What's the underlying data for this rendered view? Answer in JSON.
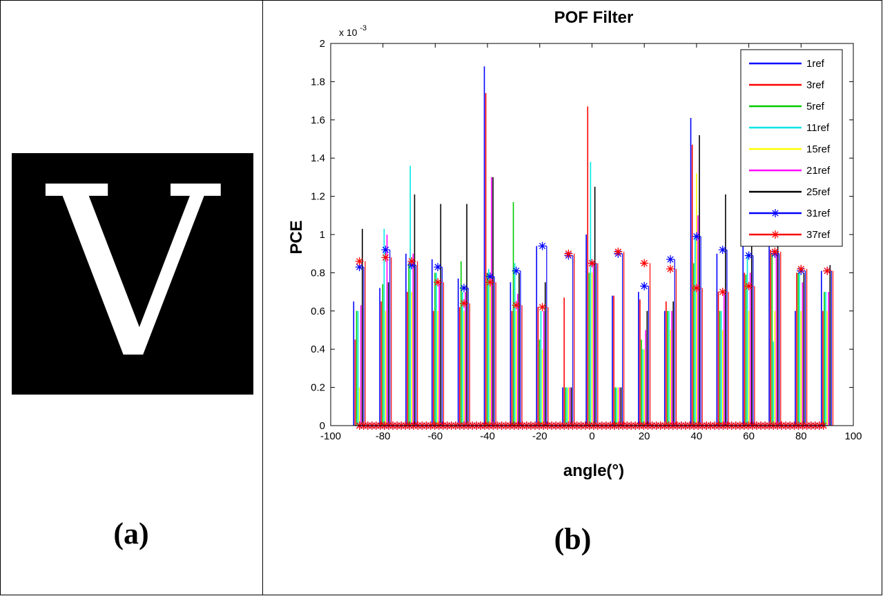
{
  "panel_a": {
    "glyph": "V",
    "caption": "(a)"
  },
  "panel_b": {
    "caption": "(b)"
  },
  "chart_data": {
    "type": "line",
    "title": "POF Filter",
    "xlabel": "angle(°)",
    "ylabel": "PCE",
    "exponent_label": "x 10",
    "exponent_power": "-3",
    "xlim": [
      -100,
      100
    ],
    "ylim": [
      0,
      2
    ],
    "x_ticks": [
      -100,
      -80,
      -60,
      -40,
      -20,
      0,
      20,
      40,
      60,
      80,
      100
    ],
    "x_tick_labels": [
      "-100",
      "-80",
      "-60",
      "-40",
      "-20",
      "0",
      "20",
      "40",
      "60",
      "80",
      "100"
    ],
    "y_ticks": [
      0,
      0.2,
      0.4,
      0.6,
      0.8,
      1,
      1.2,
      1.4,
      1.6,
      1.8,
      2
    ],
    "y_tick_labels": [
      "0",
      "0.2",
      "0.4",
      "0.6",
      "0.8",
      "1",
      "1.2",
      "1.4",
      "1.6",
      "1.8",
      "2"
    ],
    "x_angles": [
      -89,
      -79,
      -69,
      -59,
      -49,
      -39,
      -29,
      -19,
      -9,
      0,
      10,
      20,
      30,
      40,
      50,
      60,
      70,
      80,
      90
    ],
    "legend_position": "top-right",
    "series": [
      {
        "name": "1ref",
        "color": "#0000ff",
        "marker": "none",
        "values": [
          0.65,
          0.72,
          0.9,
          0.87,
          0.77,
          1.88,
          0.75,
          0.94,
          0.2,
          1.0,
          0.68,
          0.7,
          0.6,
          1.61,
          0.9,
          1.0,
          1.0,
          0.6,
          0.81
        ]
      },
      {
        "name": "3ref",
        "color": "#ff0000",
        "marker": "none",
        "values": [
          0.45,
          0.65,
          0.7,
          0.6,
          0.62,
          1.74,
          0.6,
          0.62,
          0.67,
          1.67,
          0.68,
          0.66,
          0.65,
          1.47,
          0.7,
          0.8,
          0.92,
          0.8,
          0.6
        ]
      },
      {
        "name": "5ref",
        "color": "#00cc00",
        "marker": "none",
        "values": [
          0.6,
          0.74,
          0.85,
          0.8,
          0.86,
          0.8,
          1.17,
          0.45,
          0.2,
          0.8,
          0.2,
          0.45,
          0.6,
          0.85,
          0.6,
          0.79,
          0.9,
          0.8,
          0.7
        ]
      },
      {
        "name": "11ref",
        "color": "#00e5e5",
        "marker": "none",
        "values": [
          0.6,
          1.03,
          1.36,
          0.8,
          0.7,
          0.82,
          0.85,
          0.6,
          0.2,
          1.38,
          0.2,
          0.4,
          0.6,
          1.0,
          0.6,
          0.9,
          0.44,
          0.8,
          0.7
        ]
      },
      {
        "name": "15ref",
        "color": "#ffff00",
        "marker": "none",
        "values": [
          0.2,
          0.6,
          0.7,
          0.6,
          0.6,
          0.8,
          0.6,
          0.4,
          0.2,
          0.8,
          0.2,
          0.4,
          0.5,
          1.32,
          0.5,
          0.6,
          0.6,
          0.6,
          0.6
        ]
      },
      {
        "name": "21ref",
        "color": "#ff00ff",
        "marker": "none",
        "values": [
          0.63,
          1.0,
          0.9,
          0.74,
          0.7,
          1.3,
          0.69,
          0.6,
          0.2,
          0.85,
          0.2,
          0.5,
          0.6,
          1.1,
          0.7,
          0.8,
          0.9,
          0.75,
          0.7
        ]
      },
      {
        "name": "25ref",
        "color": "#000000",
        "marker": "none",
        "values": [
          1.03,
          0.75,
          1.21,
          1.16,
          1.16,
          1.3,
          0.8,
          0.75,
          0.2,
          1.25,
          0.2,
          0.6,
          0.65,
          1.52,
          1.21,
          1.0,
          1.0,
          0.8,
          0.84
        ]
      },
      {
        "name": "31ref",
        "color": "#0000ff",
        "marker": "*",
        "values": [
          0.83,
          0.92,
          0.84,
          0.83,
          0.72,
          0.78,
          0.81,
          0.94,
          0.89,
          0.85,
          0.9,
          0.73,
          0.87,
          0.99,
          0.92,
          0.89,
          0.9,
          0.81,
          0.81
        ]
      },
      {
        "name": "37ref",
        "color": "#ff0000",
        "marker": "*",
        "values": [
          0.86,
          0.88,
          0.86,
          0.75,
          0.64,
          0.75,
          0.63,
          0.62,
          0.9,
          0.85,
          0.91,
          0.85,
          0.82,
          0.72,
          0.7,
          0.73,
          0.91,
          0.82,
          0.81
        ]
      }
    ]
  }
}
